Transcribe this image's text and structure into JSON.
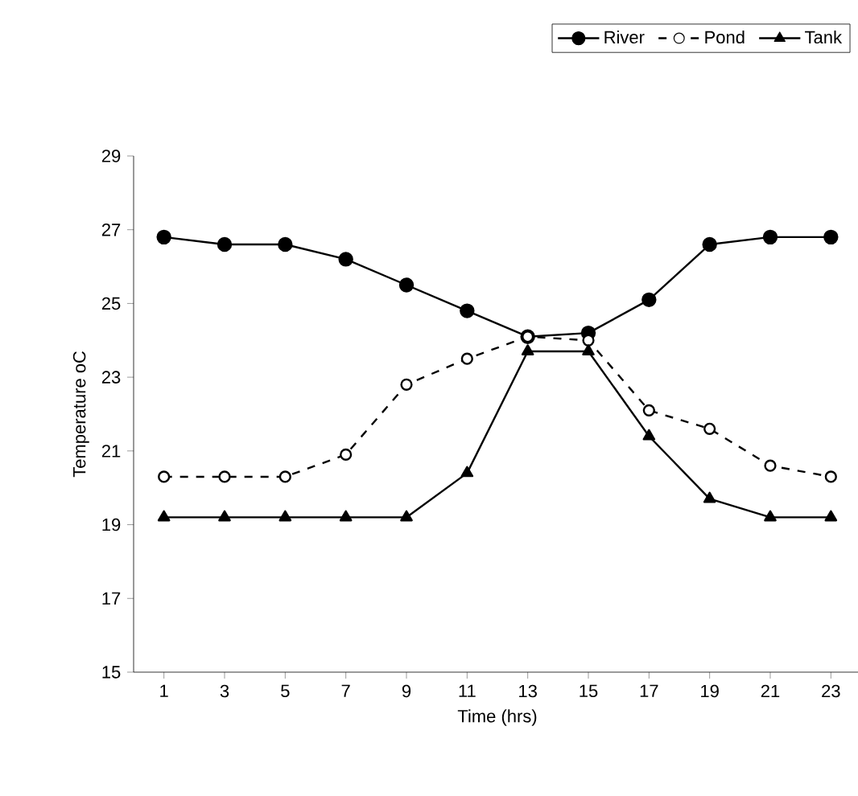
{
  "chart_data": {
    "type": "line",
    "xlabel": "Time (hrs)",
    "ylabel": "Temperature oC",
    "categories": [
      "1",
      "3",
      "5",
      "7",
      "9",
      "11",
      "13",
      "15",
      "17",
      "19",
      "21",
      "23"
    ],
    "ylim": [
      15,
      29
    ],
    "yticks": [
      15,
      17,
      19,
      21,
      23,
      25,
      27,
      29
    ],
    "grid": false,
    "legend": "top",
    "series": [
      {
        "name": "River",
        "color": "#000000",
        "marker": "circle",
        "line_style": "solid",
        "values": [
          26.8,
          26.6,
          26.6,
          26.2,
          25.5,
          24.8,
          24.1,
          24.2,
          25.1,
          26.6,
          26.8,
          26.8
        ]
      },
      {
        "name": "Pond",
        "color": "#000000",
        "marker": "open circle",
        "line_style": "dashed",
        "values": [
          20.3,
          20.3,
          20.3,
          20.9,
          22.8,
          23.5,
          24.1,
          24.0,
          22.1,
          21.6,
          20.6,
          20.3
        ]
      },
      {
        "name": "Tank",
        "color": "#000000",
        "marker": "triangle",
        "line_style": "solid",
        "values": [
          19.2,
          19.2,
          19.2,
          19.2,
          19.2,
          20.4,
          23.7,
          23.7,
          21.4,
          19.7,
          19.2,
          19.2
        ]
      }
    ]
  }
}
